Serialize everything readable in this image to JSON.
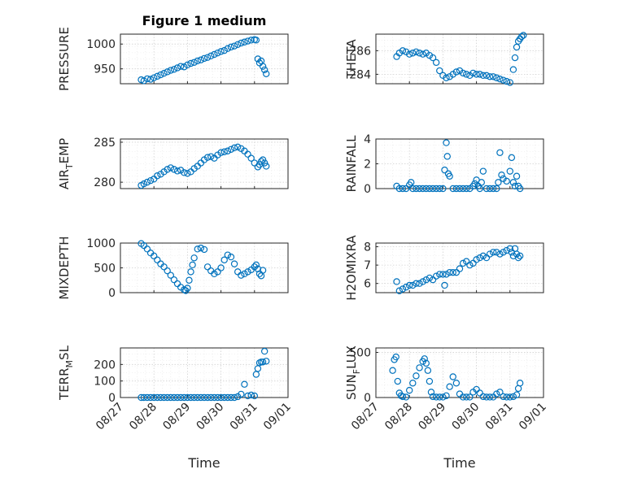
{
  "chart_data": [
    {
      "type": "scatter",
      "title": "Figure 1 medium",
      "ylabel": "PRESSURE",
      "xlabel": "",
      "xlim": [
        "08/27",
        "09/01"
      ],
      "ylim": [
        920,
        1020
      ],
      "yticks": [
        950,
        1000
      ],
      "xticks": [
        "08/27",
        "08/28",
        "08/29",
        "08/30",
        "08/31",
        "09/01"
      ],
      "grid": true,
      "series": [
        {
          "color": "#0072BD",
          "x": [
            0.62,
            0.7,
            0.8,
            0.9,
            1.0,
            1.1,
            1.2,
            1.3,
            1.4,
            1.5,
            1.6,
            1.7,
            1.8,
            1.9,
            2.0,
            2.1,
            2.2,
            2.3,
            2.4,
            2.5,
            2.6,
            2.7,
            2.8,
            2.9,
            3.0,
            3.1,
            3.2,
            3.3,
            3.4,
            3.5,
            3.6,
            3.7,
            3.8,
            3.9,
            4.0,
            4.05,
            4.1,
            4.15,
            4.2,
            4.25,
            4.3,
            4.35
          ],
          "y": [
            928,
            926,
            930,
            929,
            932,
            935,
            938,
            941,
            944,
            947,
            949,
            952,
            955,
            954,
            958,
            961,
            963,
            966,
            968,
            971,
            973,
            976,
            979,
            982,
            985,
            987,
            991,
            994,
            996,
            999,
            1002,
            1004,
            1006,
            1008,
            1009,
            1008,
            970,
            962,
            966,
            955,
            948,
            940
          ]
        }
      ]
    },
    {
      "type": "scatter",
      "title": "",
      "ylabel": "THETA",
      "xlabel": "",
      "xlim": [
        "08/27",
        "09/01"
      ],
      "ylim": [
        283.2,
        287.4
      ],
      "yticks": [
        284,
        286
      ],
      "xticks": [
        "08/27",
        "08/28",
        "08/29",
        "08/30",
        "08/31",
        "09/01"
      ],
      "grid": true,
      "series": [
        {
          "color": "#0072BD",
          "x": [
            0.62,
            0.7,
            0.8,
            0.9,
            1.0,
            1.1,
            1.2,
            1.3,
            1.4,
            1.5,
            1.6,
            1.7,
            1.8,
            1.9,
            2.0,
            2.1,
            2.2,
            2.3,
            2.4,
            2.5,
            2.6,
            2.7,
            2.8,
            2.9,
            3.0,
            3.1,
            3.2,
            3.3,
            3.4,
            3.5,
            3.6,
            3.7,
            3.8,
            3.9,
            4.0,
            4.1,
            4.15,
            4.2,
            4.25,
            4.3,
            4.35,
            4.4
          ],
          "y": [
            285.5,
            285.8,
            286.0,
            285.9,
            285.7,
            285.8,
            285.9,
            285.8,
            285.7,
            285.8,
            285.6,
            285.4,
            285.0,
            284.3,
            283.9,
            283.7,
            283.8,
            284.0,
            284.2,
            284.3,
            284.1,
            284.0,
            283.9,
            284.1,
            284.0,
            284.0,
            283.9,
            283.9,
            283.8,
            283.8,
            283.7,
            283.6,
            283.5,
            283.4,
            283.3,
            284.4,
            285.4,
            286.3,
            286.8,
            287.0,
            287.2,
            287.3
          ]
        }
      ]
    },
    {
      "type": "scatter",
      "title": "",
      "ylabel": "AIR_TEMP",
      "xlabel": "",
      "xlim": [
        "08/27",
        "09/01"
      ],
      "ylim": [
        279.2,
        285.4
      ],
      "yticks": [
        280,
        285
      ],
      "xticks": [
        "08/27",
        "08/28",
        "08/29",
        "08/30",
        "08/31",
        "09/01"
      ],
      "grid": true,
      "series": [
        {
          "color": "#0072BD",
          "x": [
            0.62,
            0.7,
            0.8,
            0.9,
            1.0,
            1.1,
            1.2,
            1.3,
            1.4,
            1.5,
            1.6,
            1.7,
            1.8,
            1.9,
            2.0,
            2.1,
            2.2,
            2.3,
            2.4,
            2.5,
            2.6,
            2.7,
            2.8,
            2.9,
            3.0,
            3.1,
            3.2,
            3.3,
            3.4,
            3.5,
            3.6,
            3.7,
            3.8,
            3.9,
            4.0,
            4.1,
            4.15,
            4.2,
            4.25,
            4.3,
            4.35
          ],
          "y": [
            279.6,
            279.8,
            280.0,
            280.2,
            280.4,
            280.8,
            281.0,
            281.3,
            281.6,
            281.8,
            281.6,
            281.4,
            281.5,
            281.2,
            281.1,
            281.3,
            281.7,
            282.0,
            282.4,
            282.8,
            283.1,
            283.2,
            283.0,
            283.4,
            283.7,
            283.8,
            283.9,
            284.1,
            284.3,
            284.4,
            284.2,
            283.9,
            283.5,
            283.0,
            282.4,
            281.9,
            282.2,
            282.6,
            282.8,
            282.4,
            282.0
          ]
        }
      ]
    },
    {
      "type": "scatter",
      "title": "",
      "ylabel": "RAINFALL",
      "xlabel": "",
      "xlim": [
        "08/27",
        "09/01"
      ],
      "ylim": [
        0,
        4
      ],
      "yticks": [
        0,
        2,
        4
      ],
      "xticks": [
        "08/27",
        "08/28",
        "08/29",
        "08/30",
        "08/31",
        "09/01"
      ],
      "grid": true,
      "series": [
        {
          "color": "#0072BD",
          "x": [
            0.62,
            0.7,
            0.8,
            0.9,
            1.0,
            1.05,
            1.1,
            1.2,
            1.3,
            1.4,
            1.5,
            1.6,
            1.7,
            1.8,
            1.9,
            2.0,
            2.05,
            2.1,
            2.13,
            2.16,
            2.2,
            2.3,
            2.4,
            2.5,
            2.6,
            2.7,
            2.8,
            2.9,
            2.95,
            3.0,
            3.05,
            3.1,
            3.15,
            3.2,
            3.3,
            3.4,
            3.5,
            3.6,
            3.65,
            3.7,
            3.75,
            3.8,
            3.9,
            4.0,
            4.05,
            4.1,
            4.15,
            4.2,
            4.25,
            4.3
          ],
          "y": [
            0.2,
            0,
            0,
            0,
            0.3,
            0.5,
            0,
            0,
            0,
            0,
            0,
            0,
            0,
            0,
            0,
            0,
            1.5,
            3.7,
            2.6,
            1.2,
            1.0,
            0,
            0,
            0,
            0,
            0,
            0,
            0.2,
            0.4,
            0.7,
            0.2,
            0,
            0.5,
            1.4,
            0,
            0,
            0,
            0,
            0.5,
            2.9,
            1.1,
            0.8,
            0.6,
            1.4,
            2.5,
            0.5,
            0.2,
            1.0,
            0.2,
            0
          ]
        }
      ]
    },
    {
      "type": "scatter",
      "title": "",
      "ylabel": "MIXDEPTH",
      "xlabel": "",
      "xlim": [
        "08/27",
        "09/01"
      ],
      "ylim": [
        0,
        1000
      ],
      "yticks": [
        0,
        500,
        1000
      ],
      "xticks": [
        "08/27",
        "08/28",
        "08/29",
        "08/30",
        "08/31",
        "09/01"
      ],
      "grid": true,
      "series": [
        {
          "color": "#0072BD",
          "x": [
            0.62,
            0.7,
            0.8,
            0.9,
            1.0,
            1.1,
            1.2,
            1.3,
            1.4,
            1.5,
            1.6,
            1.7,
            1.8,
            1.9,
            1.95,
            2.0,
            2.05,
            2.1,
            2.15,
            2.2,
            2.3,
            2.4,
            2.5,
            2.6,
            2.7,
            2.8,
            2.9,
            3.0,
            3.1,
            3.2,
            3.3,
            3.4,
            3.5,
            3.6,
            3.7,
            3.8,
            3.9,
            4.0,
            4.05,
            4.1,
            4.15,
            4.2,
            4.25
          ],
          "y": [
            990,
            950,
            880,
            800,
            740,
            660,
            580,
            520,
            440,
            350,
            260,
            180,
            110,
            60,
            40,
            90,
            250,
            420,
            560,
            700,
            880,
            900,
            870,
            520,
            440,
            380,
            420,
            500,
            660,
            760,
            720,
            580,
            420,
            350,
            380,
            420,
            460,
            520,
            560,
            480,
            380,
            340,
            450
          ]
        }
      ]
    },
    {
      "type": "scatter",
      "title": "",
      "ylabel": "H2OMIXRA",
      "xlabel": "",
      "xlim": [
        "08/27",
        "09/01"
      ],
      "ylim": [
        5.5,
        8.2
      ],
      "yticks": [
        6,
        7,
        8
      ],
      "xticks": [
        "08/27",
        "08/28",
        "08/29",
        "08/30",
        "08/31",
        "09/01"
      ],
      "grid": true,
      "series": [
        {
          "color": "#0072BD",
          "x": [
            0.62,
            0.7,
            0.8,
            0.9,
            1.0,
            1.1,
            1.2,
            1.3,
            1.4,
            1.5,
            1.6,
            1.7,
            1.8,
            1.9,
            2.0,
            2.05,
            2.1,
            2.2,
            2.3,
            2.4,
            2.5,
            2.6,
            2.7,
            2.8,
            2.9,
            3.0,
            3.1,
            3.2,
            3.3,
            3.4,
            3.5,
            3.6,
            3.7,
            3.8,
            3.9,
            4.0,
            4.05,
            4.1,
            4.15,
            4.2,
            4.25,
            4.3
          ],
          "y": [
            6.1,
            5.6,
            5.7,
            5.8,
            5.9,
            5.9,
            6.0,
            6.0,
            6.1,
            6.2,
            6.3,
            6.2,
            6.4,
            6.5,
            6.5,
            5.9,
            6.5,
            6.6,
            6.6,
            6.6,
            6.8,
            7.1,
            7.2,
            7.0,
            7.1,
            7.3,
            7.4,
            7.5,
            7.4,
            7.6,
            7.7,
            7.7,
            7.6,
            7.7,
            7.8,
            7.9,
            7.7,
            7.5,
            7.9,
            7.6,
            7.4,
            7.5
          ]
        }
      ]
    },
    {
      "type": "scatter",
      "title": "",
      "ylabel": "TERR_MSL",
      "xlabel": "Time",
      "xlim": [
        "08/27",
        "09/01"
      ],
      "ylim": [
        0,
        300
      ],
      "yticks": [
        0,
        100,
        200
      ],
      "xticks": [
        "08/27",
        "08/28",
        "08/29",
        "08/30",
        "08/31",
        "09/01"
      ],
      "grid": true,
      "series": [
        {
          "color": "#0072BD",
          "x": [
            0.62,
            0.7,
            0.8,
            0.9,
            1.0,
            1.1,
            1.2,
            1.3,
            1.4,
            1.5,
            1.6,
            1.7,
            1.8,
            1.9,
            2.0,
            2.1,
            2.2,
            2.3,
            2.4,
            2.5,
            2.6,
            2.7,
            2.8,
            2.9,
            3.0,
            3.1,
            3.2,
            3.3,
            3.4,
            3.5,
            3.6,
            3.7,
            3.8,
            3.9,
            4.0,
            4.05,
            4.1,
            4.15,
            4.2,
            4.25,
            4.3,
            4.35
          ],
          "y": [
            0,
            0,
            0,
            0,
            0,
            0,
            0,
            0,
            0,
            0,
            0,
            0,
            0,
            0,
            0,
            0,
            0,
            0,
            0,
            0,
            0,
            0,
            0,
            0,
            0,
            0,
            0,
            0,
            0,
            5,
            20,
            80,
            10,
            15,
            10,
            140,
            175,
            210,
            215,
            215,
            280,
            220
          ]
        }
      ]
    },
    {
      "type": "scatter",
      "title": "",
      "ylabel": "SUN_FLUX",
      "xlabel": "Time",
      "xlim": [
        "08/27",
        "09/01"
      ],
      "ylim": [
        0,
        550
      ],
      "yticks": [
        0,
        500
      ],
      "xticks": [
        "08/27",
        "08/28",
        "08/29",
        "08/30",
        "08/31",
        "09/01"
      ],
      "grid": true,
      "series": [
        {
          "color": "#0072BD",
          "x": [
            0.5,
            0.55,
            0.6,
            0.65,
            0.7,
            0.75,
            0.8,
            0.9,
            1.0,
            1.1,
            1.2,
            1.3,
            1.4,
            1.45,
            1.5,
            1.55,
            1.6,
            1.65,
            1.7,
            1.8,
            1.9,
            2.0,
            2.1,
            2.2,
            2.3,
            2.4,
            2.5,
            2.6,
            2.7,
            2.8,
            2.9,
            3.0,
            3.1,
            3.2,
            3.3,
            3.4,
            3.5,
            3.6,
            3.7,
            3.8,
            3.9,
            4.0,
            4.1,
            4.2,
            4.25,
            4.3
          ],
          "y": [
            300,
            420,
            450,
            180,
            50,
            20,
            10,
            5,
            80,
            160,
            240,
            330,
            400,
            430,
            380,
            300,
            180,
            60,
            10,
            5,
            5,
            5,
            20,
            120,
            230,
            160,
            40,
            5,
            5,
            5,
            60,
            90,
            50,
            10,
            5,
            5,
            5,
            40,
            60,
            10,
            5,
            5,
            10,
            30,
            100,
            160
          ]
        }
      ]
    }
  ]
}
